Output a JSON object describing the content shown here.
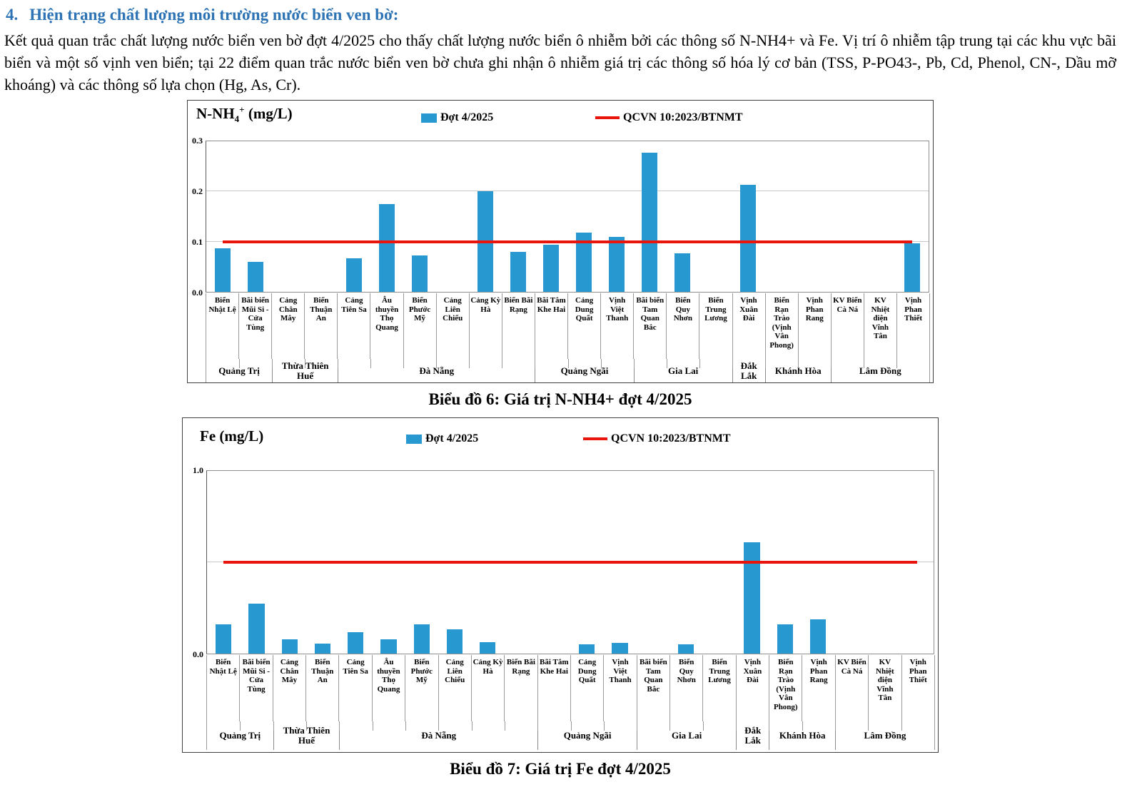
{
  "page": {
    "section_number": "4.",
    "section_heading": "Hiện trạng chất lượng môi trường nước biển ven bờ:",
    "paragraph": "Kết quả quan trắc chất lượng nước biển ven bờ đợt 4/2025 cho thấy chất lượng nước biển ô nhiễm bởi các thông số N-NH4+ và Fe. Vị trí ô nhiễm tập trung tại các khu vực bãi biển và một số vịnh ven biển; tại 22 điểm quan trắc nước biển ven bờ chưa ghi nhận ô nhiễm giá trị các thông số hóa lý cơ bản (TSS, P-PO43-, Pb, Cd, Phenol, CN-, Dầu mỡ khoáng) và các thông số lựa chọn (Hg, As, Cr).",
    "captions": [
      "Biểu đồ 6: Giá trị N-NH4+ đợt 4/2025",
      "Biểu đồ 7: Giá trị Fe đợt 4/2025"
    ]
  },
  "colors": {
    "heading": "#2E74B5",
    "bar": "#2899D0",
    "limit_line": "#E9150D"
  },
  "chart_data": [
    {
      "type": "bar",
      "title_prefix": "N-NH",
      "title_sub": "4",
      "title_sup": "+",
      "title_suffix": " (mg/L)",
      "legend_series": "Đợt 4/2025",
      "legend_limit": "QCVN 10:2023/BTNMT",
      "ylim": [
        0,
        0.3
      ],
      "yticks": [
        {
          "v": 0,
          "label": "0.0"
        },
        {
          "v": 0.1,
          "label": "0.1"
        },
        {
          "v": 0.2,
          "label": "0.2"
        },
        {
          "v": 0.3,
          "label": "0.3"
        }
      ],
      "limit_value": 0.1,
      "legend_position": "top",
      "grid": true,
      "categories": [
        "Biển Nhật Lệ",
        "Bãi biển Mũi Si - Cửa Tùng",
        "Cảng Chân Mây",
        "Biển Thuận An",
        "Cảng Tiên Sa",
        "Âu thuyền Thọ Quang",
        "Biển Phước Mỹ",
        "Cảng Liên Chiểu",
        "Cảng Kỳ Hà",
        "Biển Bãi Rạng",
        "Bãi Tắm Khe Hai",
        "Cảng Dung Quất",
        "Vịnh Việt Thanh",
        "Bãi biển Tam Quan Bắc",
        "Biển Quy Nhơn",
        "Biển Trung Lương",
        "Vịnh Xuân Đài",
        "Biển Rạn Trào (Vịnh Vân Phong)",
        "Vịnh Phan Rang",
        "KV Biển Cà Ná",
        "KV Nhiệt điện Vĩnh Tân",
        "Vịnh Phan Thiết"
      ],
      "values": [
        0.087,
        0.06,
        0,
        0,
        0.067,
        0.175,
        0.073,
        0,
        0.2,
        0.079,
        0.094,
        0.118,
        0.11,
        0.277,
        0.077,
        0,
        0.214,
        0,
        0,
        0,
        0,
        0.097
      ],
      "groups": [
        {
          "label": "Quảng Trị",
          "span": 2
        },
        {
          "label": "Thừa Thiên Huế",
          "span": 2
        },
        {
          "label": "Đà Nẵng",
          "span": 6
        },
        {
          "label": "Quảng Ngãi",
          "span": 3
        },
        {
          "label": "Gia Lai",
          "span": 3
        },
        {
          "label": "Đắk Lắk",
          "span": 1
        },
        {
          "label": "Khánh Hòa",
          "span": 2
        },
        {
          "label": "Lâm Đồng",
          "span": 3
        }
      ]
    },
    {
      "type": "bar",
      "title_prefix": "Fe",
      "title_sub": "",
      "title_sup": "",
      "title_suffix": " (mg/L)",
      "legend_series": "Đợt 4/2025",
      "legend_limit": "QCVN 10:2023/BTNMT",
      "ylim": [
        0,
        1.0
      ],
      "yticks": [
        {
          "v": 0,
          "label": "0.0"
        },
        {
          "v": 0.5,
          "label": ""
        },
        {
          "v": 1,
          "label": "1.0"
        }
      ],
      "limit_value": 0.5,
      "legend_position": "top",
      "grid": true,
      "categories": [
        "Biển Nhật Lệ",
        "Bãi biển Mũi Si - Cửa Tùng",
        "Cảng Chân Mây",
        "Biển Thuận An",
        "Cảng Tiên Sa",
        "Âu thuyền Thọ Quang",
        "Biển Phước Mỹ",
        "Cảng Liên Chiểu",
        "Cảng Kỳ Hà",
        "Biển Bãi Rạng",
        "Bãi Tắm Khe Hai",
        "Cảng Dung Quất",
        "Vịnh Việt Thanh",
        "Bãi biển Tam Quan Bắc",
        "Biển Quy Nhơn",
        "Biển Trung Lương",
        "Vịnh Xuân Đài",
        "Biển Rạn Trào (Vịnh Vân Phong)",
        "Vịnh Phan Rang",
        "KV Biển Cà Ná",
        "KV Nhiệt điện Vĩnh Tân",
        "Vịnh Phan Thiết"
      ],
      "values": [
        0.16,
        0.275,
        0.078,
        0.053,
        0.117,
        0.078,
        0.162,
        0.132,
        0.062,
        0,
        0,
        0.051,
        0.058,
        0,
        0.051,
        0,
        0.61,
        0.16,
        0.187,
        0,
        0,
        0
      ],
      "groups": [
        {
          "label": "Quảng Trị",
          "span": 2
        },
        {
          "label": "Thừa Thiên Huế",
          "span": 2
        },
        {
          "label": "Đà Nẵng",
          "span": 6
        },
        {
          "label": "Quảng Ngãi",
          "span": 3
        },
        {
          "label": "Gia Lai",
          "span": 3
        },
        {
          "label": "Đắk Lắk",
          "span": 1
        },
        {
          "label": "Khánh Hòa",
          "span": 2
        },
        {
          "label": "Lâm Đồng",
          "span": 3
        }
      ]
    }
  ]
}
